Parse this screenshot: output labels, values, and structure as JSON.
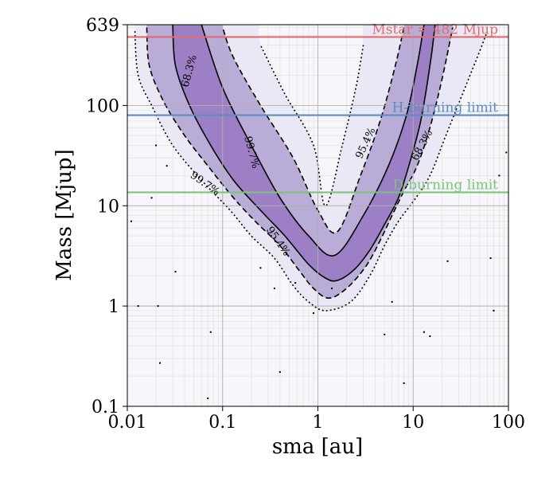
{
  "chart_data": {
    "type": "contour",
    "title": "",
    "xlabel": "sma [au]",
    "ylabel": "Mass [Mjup]",
    "xscale": "log",
    "yscale": "log",
    "xlim": [
      0.01,
      100
    ],
    "ylim": [
      0.1,
      639
    ],
    "xticks": [
      {
        "value": 0.01,
        "label": "0.01"
      },
      {
        "value": 0.1,
        "label": "0.1"
      },
      {
        "value": 1,
        "label": "1"
      },
      {
        "value": 10,
        "label": "10"
      },
      {
        "value": 100,
        "label": "100"
      }
    ],
    "yticks": [
      {
        "value": 0.1,
        "label": "0.1"
      },
      {
        "value": 1,
        "label": "1"
      },
      {
        "value": 10,
        "label": "10"
      },
      {
        "value": 100,
        "label": "100"
      },
      {
        "value": 639,
        "label": "639"
      }
    ],
    "grid": true,
    "reference_lines": [
      {
        "name": "mstar-line",
        "value": 482,
        "label": "Mstar = 482 Mjup",
        "color": "#e36a6f"
      },
      {
        "name": "h-burning-line",
        "value": 80,
        "label": "H-burning limit",
        "color": "#5b8fbf"
      },
      {
        "name": "d-burning-line",
        "value": 13.6,
        "label": "D-burning limit",
        "color": "#7cc47c"
      }
    ],
    "contours": [
      {
        "name": "contour-997",
        "level": "99.7%",
        "style": "dotted",
        "fill": "#eae8f4",
        "left_edge": [
          [
            0.012,
            550
          ],
          [
            0.013,
            200
          ],
          [
            0.018,
            100
          ],
          [
            0.03,
            40
          ],
          [
            0.06,
            18
          ],
          [
            0.12,
            9
          ],
          [
            0.2,
            5
          ],
          [
            0.35,
            3
          ],
          [
            0.55,
            1.6
          ],
          [
            0.8,
            1.1
          ],
          [
            1.2,
            0.9
          ]
        ],
        "right_edge": [
          [
            1.2,
            0.9
          ],
          [
            2.2,
            1.1
          ],
          [
            3.5,
            2
          ],
          [
            5,
            4
          ],
          [
            7,
            7
          ],
          [
            10,
            11
          ],
          [
            15,
            20
          ],
          [
            22,
            50
          ],
          [
            35,
            150
          ],
          [
            50,
            350
          ],
          [
            60,
            550
          ]
        ],
        "inner_edge": [
          [
            3,
            400
          ],
          [
            2.5,
            150
          ],
          [
            1.8,
            40
          ],
          [
            1.2,
            10
          ],
          [
            0.9,
            40
          ],
          [
            0.45,
            130
          ],
          [
            0.25,
            400
          ]
        ]
      },
      {
        "name": "contour-954",
        "level": "95.4%",
        "style": "dashed",
        "fill": "#b9acd6",
        "left_edge": [
          [
            0.016,
            600
          ],
          [
            0.017,
            250
          ],
          [
            0.024,
            110
          ],
          [
            0.04,
            50
          ],
          [
            0.07,
            25
          ],
          [
            0.13,
            12
          ],
          [
            0.22,
            7
          ],
          [
            0.4,
            4
          ],
          [
            0.65,
            2.2
          ],
          [
            0.9,
            1.5
          ],
          [
            1.3,
            1.2
          ]
        ],
        "right_edge": [
          [
            1.3,
            1.2
          ],
          [
            2,
            1.5
          ],
          [
            3.2,
            2.5
          ],
          [
            4.5,
            4.5
          ],
          [
            6,
            8
          ],
          [
            8,
            14
          ],
          [
            11,
            25
          ],
          [
            15,
            60
          ],
          [
            20,
            180
          ],
          [
            26,
            600
          ]
        ],
        "inner_edge": [
          [
            8,
            600
          ],
          [
            6.5,
            250
          ],
          [
            4.5,
            70
          ],
          [
            2.8,
            20
          ],
          [
            1.6,
            5.5
          ],
          [
            1.0,
            9
          ],
          [
            0.55,
            30
          ],
          [
            0.25,
            100
          ],
          [
            0.13,
            300
          ],
          [
            0.1,
            600
          ]
        ]
      },
      {
        "name": "contour-683",
        "level": "68.3%",
        "style": "solid",
        "fill": "#9c7fc4",
        "left_edge": [
          [
            0.03,
            639
          ],
          [
            0.032,
            250
          ],
          [
            0.045,
            100
          ],
          [
            0.075,
            40
          ],
          [
            0.13,
            18
          ],
          [
            0.25,
            9
          ],
          [
            0.45,
            5
          ],
          [
            0.8,
            2.6
          ],
          [
            1.2,
            1.9
          ],
          [
            1.6,
            1.8
          ]
        ],
        "right_edge": [
          [
            1.6,
            1.8
          ],
          [
            2.4,
            2.3
          ],
          [
            3.5,
            3.6
          ],
          [
            5,
            6.5
          ],
          [
            7,
            12
          ],
          [
            9,
            25
          ],
          [
            12,
            70
          ],
          [
            15,
            250
          ],
          [
            17,
            639
          ]
        ],
        "inner_edge": [
          [
            13,
            639
          ],
          [
            11,
            250
          ],
          [
            8.5,
            80
          ],
          [
            5.5,
            25
          ],
          [
            3,
            8
          ],
          [
            1.5,
            3.2
          ],
          [
            0.8,
            5
          ],
          [
            0.4,
            12
          ],
          [
            0.2,
            40
          ],
          [
            0.1,
            150
          ],
          [
            0.06,
            639
          ]
        ]
      }
    ],
    "contour_labels": [
      {
        "text": "68.3%",
        "x": 0.045,
        "y": 220,
        "rotate": -75
      },
      {
        "text": "99.7%",
        "x": 0.2,
        "y": 34,
        "rotate": 75
      },
      {
        "text": "99.7%",
        "x": 0.065,
        "y": 16.5,
        "rotate": 35
      },
      {
        "text": "95.4%",
        "x": 3.2,
        "y": 42,
        "rotate": -65
      },
      {
        "text": "68.3%",
        "x": 12.5,
        "y": 40,
        "rotate": -62
      },
      {
        "text": "95.4%",
        "x": 0.38,
        "y": 4.4,
        "rotate": 55
      }
    ],
    "outlier_points": [
      [
        0.013,
        1
      ],
      [
        0.021,
        1
      ],
      [
        0.022,
        0.27
      ],
      [
        0.032,
        2.2
      ],
      [
        0.07,
        0.12
      ],
      [
        0.075,
        0.55
      ],
      [
        0.4,
        0.22
      ],
      [
        0.35,
        1.5
      ],
      [
        0.58,
        1.7
      ],
      [
        1.4,
        1.5
      ],
      [
        5,
        0.52
      ],
      [
        6,
        1.1
      ],
      [
        8,
        0.17
      ],
      [
        13,
        0.55
      ],
      [
        15,
        0.5
      ],
      [
        23,
        2.8
      ],
      [
        65,
        3
      ],
      [
        70,
        0.9
      ],
      [
        80,
        20
      ],
      [
        0.018,
        12
      ],
      [
        0.026,
        25
      ],
      [
        95,
        34
      ],
      [
        0.011,
        7
      ],
      [
        0.02,
        40
      ],
      [
        0.25,
        2.4
      ],
      [
        0.9,
        0.85
      ]
    ]
  }
}
